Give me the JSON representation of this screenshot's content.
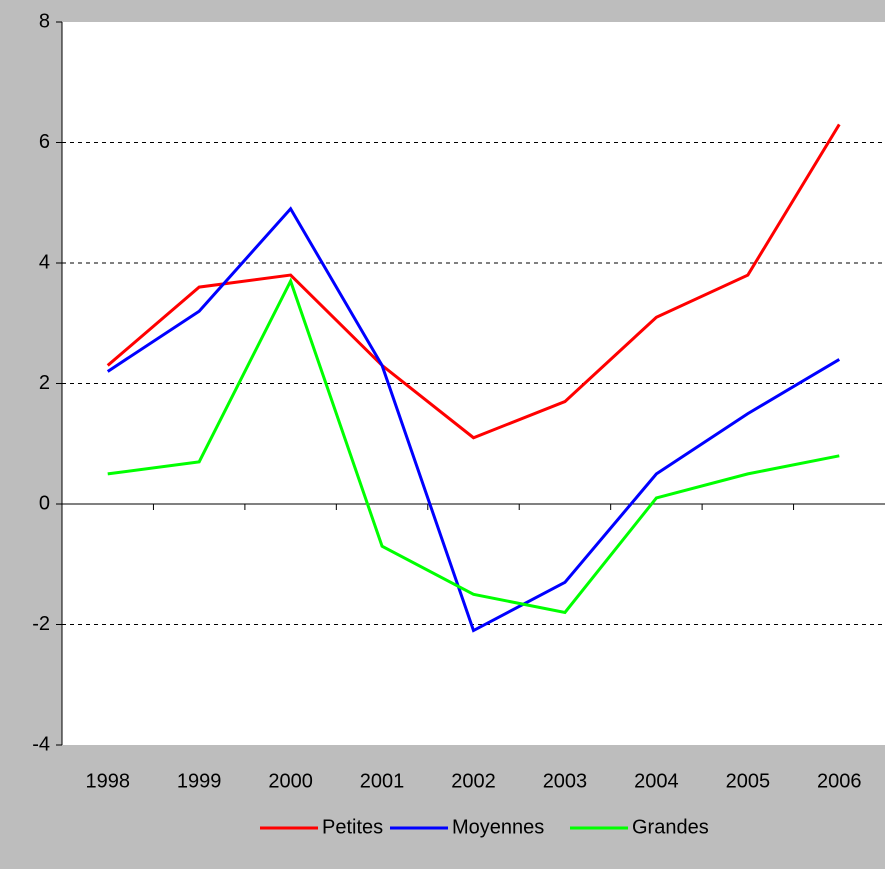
{
  "chart_data": {
    "type": "line",
    "categories": [
      "1998",
      "1999",
      "2000",
      "2001",
      "2002",
      "2003",
      "2004",
      "2005",
      "2006"
    ],
    "series": [
      {
        "name": "Petites",
        "color": "#ff0000",
        "values": [
          2.3,
          3.6,
          3.8,
          2.3,
          1.1,
          1.7,
          3.1,
          3.8,
          6.3
        ]
      },
      {
        "name": "Moyennes",
        "color": "#0000ff",
        "values": [
          2.2,
          3.2,
          4.9,
          2.3,
          -2.1,
          -1.3,
          0.5,
          1.5,
          2.4
        ]
      },
      {
        "name": "Grandes",
        "color": "#00ff00",
        "values": [
          0.5,
          0.7,
          3.7,
          -0.7,
          -1.5,
          -1.8,
          0.1,
          0.5,
          0.8
        ]
      }
    ],
    "ylim": [
      -4,
      8
    ],
    "yticks": [
      -4,
      -2,
      0,
      2,
      4,
      6,
      8
    ],
    "grid": true,
    "legend": "bottom"
  }
}
